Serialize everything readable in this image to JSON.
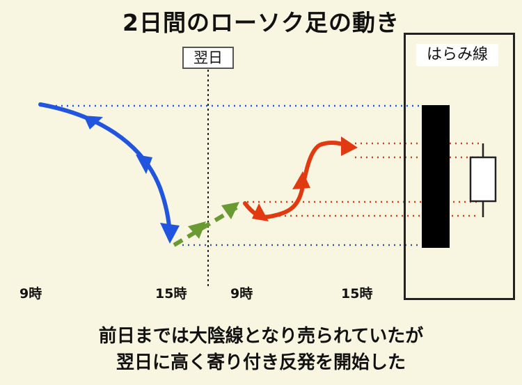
{
  "title": "2日間のローソク足の動き",
  "next_day_label": "翌日",
  "harami_label": "はらみ線",
  "time_ticks": [
    "9時",
    "15時",
    "9時",
    "15時"
  ],
  "caption_lines": [
    "前日までは大陰線となり売られていたが",
    "翌日に高く寄り付き反発を開始した"
  ],
  "colors": {
    "background": "#f8f6e0",
    "day1_line": "#2255dd",
    "gap_line": "#6a9a32",
    "day2_line": "#e23a10",
    "bearish_candle": "#000000",
    "bullish_candle": "#ffffff"
  },
  "icons": [
    "down-arrow-icon",
    "up-arrow-icon"
  ]
}
